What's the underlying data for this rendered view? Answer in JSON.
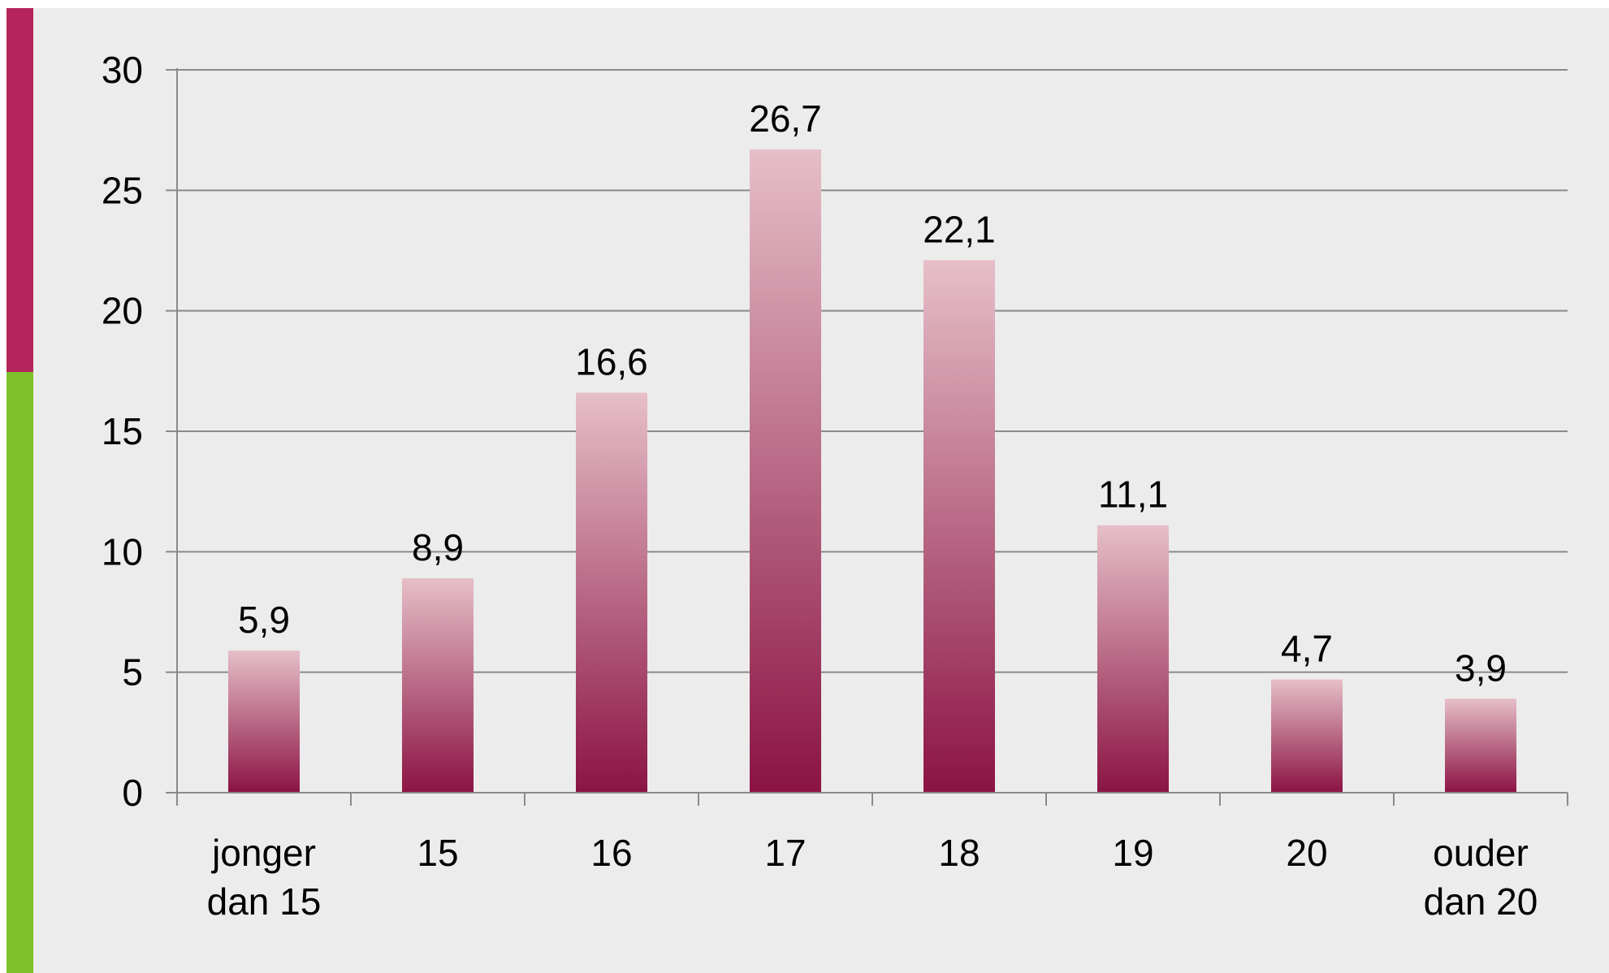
{
  "colors": {
    "accent_top": "#b5245b",
    "accent_bottom": "#7fc12a",
    "panel_background": "#ececec",
    "bar_gradient_top": "#e6bfc8",
    "bar_gradient_bottom": "#8b1343",
    "gridline": "#8a8a8a",
    "axis": "#8a8a8a"
  },
  "chart_data": {
    "type": "bar",
    "title": "",
    "xlabel": "",
    "ylabel": "",
    "categories": [
      [
        "jonger",
        "dan 15"
      ],
      [
        "15"
      ],
      [
        "16"
      ],
      [
        "17"
      ],
      [
        "18"
      ],
      [
        "19"
      ],
      [
        "20"
      ],
      [
        "ouder",
        "dan 20"
      ]
    ],
    "values": [
      5.9,
      8.9,
      16.6,
      26.7,
      22.1,
      11.1,
      4.7,
      3.9
    ],
    "data_labels": [
      "5,9",
      "8,9",
      "16,6",
      "26,7",
      "22,1",
      "11,1",
      "4,7",
      "3,9"
    ],
    "ylim": [
      0,
      30
    ],
    "yticks": [
      0,
      5,
      10,
      15,
      20,
      25,
      30
    ],
    "ytick_labels": [
      "0",
      "5",
      "10",
      "15",
      "20",
      "25",
      "30"
    ],
    "grid": true,
    "legend": "none"
  }
}
